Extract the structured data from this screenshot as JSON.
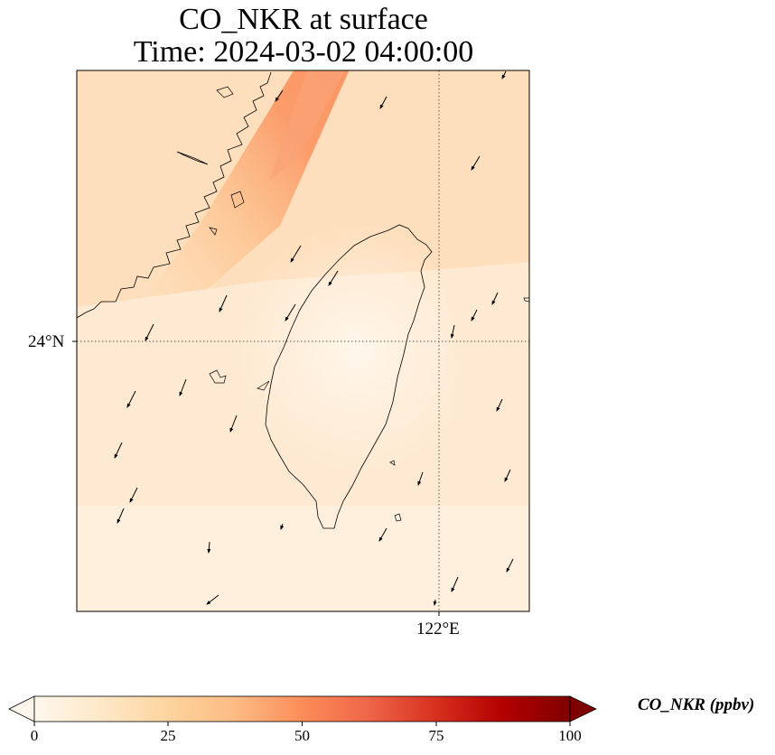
{
  "title": {
    "line1": "CO_NKR at surface",
    "line2": "Time: 2024-03-02 04:00:00"
  },
  "axes": {
    "lat_label": "24°N",
    "lon_label": "122°E",
    "gridline_lat_deg": 24,
    "gridline_lon_deg": 122,
    "gridline_style": "dotted"
  },
  "field": {
    "variable": "CO_NKR",
    "units": "ppbv",
    "level": "surface",
    "plume_max_approx": 42,
    "background_approx": 10,
    "island_min_approx": 3
  },
  "colorbar": {
    "label": "CO_NKR (ppbv)",
    "ticks": [
      "0",
      "25",
      "50",
      "75",
      "100"
    ],
    "min": 0,
    "max": 100,
    "extend": "both",
    "colormap": "OrRd",
    "colors": [
      "#fff7ec",
      "#fee8c8",
      "#fdd49e",
      "#fdbb84",
      "#fc8d59",
      "#ef6548",
      "#d7301f",
      "#b30000",
      "#7f0000"
    ]
  },
  "wind": {
    "description": "wind vectors, predominantly southward / south-southwest",
    "arrow_count": 33
  }
}
